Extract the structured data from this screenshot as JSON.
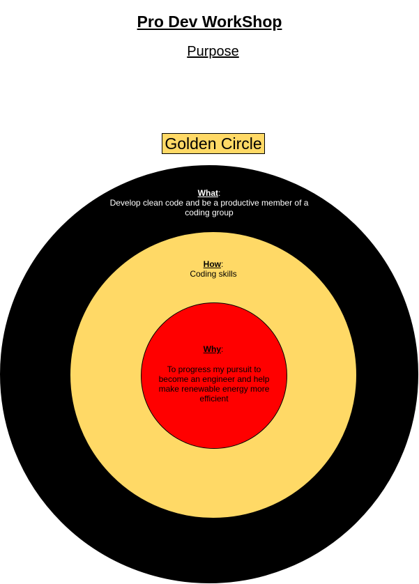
{
  "header": {
    "title": "Pro Dev WorkShop",
    "subtitle": "Purpose"
  },
  "diagram": {
    "label": "Golden Circle",
    "colors": {
      "outer": "#000000",
      "middle": "#ffd966",
      "inner": "#ff0000",
      "label_bg": "#ffd966"
    },
    "what": {
      "heading": "What",
      "colon": ":",
      "text": "Develop clean code and be a productive member of a coding group"
    },
    "how": {
      "heading": "How",
      "colon": ":",
      "text": "Coding skills"
    },
    "why": {
      "heading": "Why",
      "colon": ":",
      "text": "To progress my pursuit to become an engineer and help make renewable energy more efficient"
    }
  }
}
